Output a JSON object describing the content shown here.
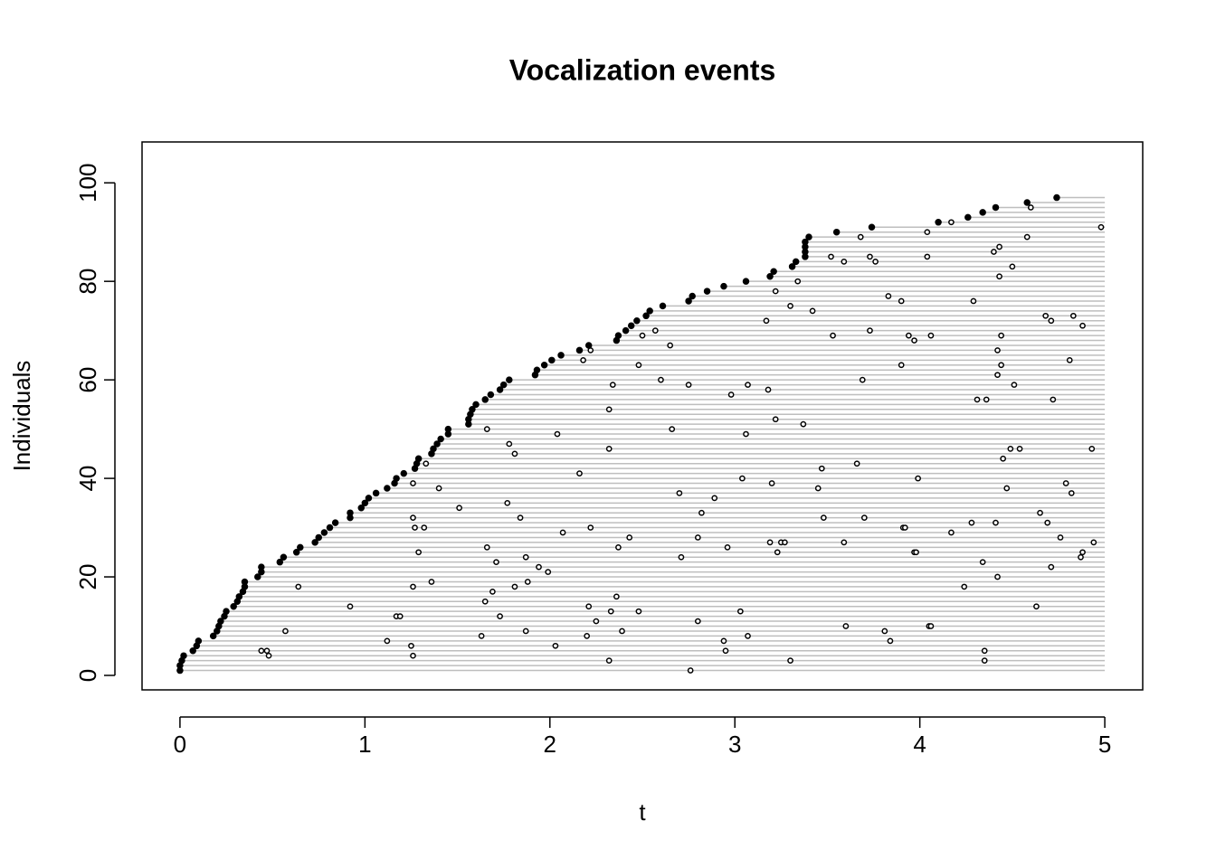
{
  "chart_data": {
    "type": "scatter",
    "title": "Vocalization events",
    "xlabel": "t",
    "ylabel": "Individuals",
    "xlim": [
      -0.205,
      5.205
    ],
    "ylim": [
      -2.94,
      108.3
    ],
    "xticks": [
      0,
      1,
      2,
      3,
      4,
      5
    ],
    "yticks": [
      0,
      20,
      40,
      60,
      80,
      100
    ],
    "line_end": 5,
    "line_color": "#bebebe",
    "color": "#000000",
    "series": [
      {
        "marker": "filled",
        "x": [
          0,
          0,
          0.01,
          0.02,
          0.07,
          0.09,
          0.1,
          0.18,
          0.2,
          0.21,
          0.22,
          0.24,
          0.25,
          0.29,
          0.31,
          0.32,
          0.34,
          0.35,
          0.35,
          0.42,
          0.44,
          0.44,
          0.54,
          0.56,
          0.63,
          0.65,
          0.73,
          0.75,
          0.78,
          0.81,
          0.84,
          0.92,
          0.92,
          0.98,
          1.0,
          1.02,
          1.06,
          1.12,
          1.16,
          1.17,
          1.21,
          1.27,
          1.28,
          1.29,
          1.36,
          1.37,
          1.39,
          1.41,
          1.45,
          1.45,
          1.56,
          1.56,
          1.57,
          1.58,
          1.6,
          1.65,
          1.68,
          1.73,
          1.75,
          1.78,
          1.92,
          1.93,
          1.97,
          2.01,
          2.06,
          2.16,
          2.21,
          2.36,
          2.37,
          2.41,
          2.44,
          2.47,
          2.52,
          2.54,
          2.61,
          2.75,
          2.77,
          2.85,
          2.94,
          3.06,
          3.19,
          3.21,
          3.31,
          3.33,
          3.38,
          3.38,
          3.38,
          3.38,
          3.4,
          3.55,
          3.74,
          4.1,
          4.26,
          4.34,
          4.41,
          4.58,
          4.74
        ],
        "y": [
          1,
          2,
          3,
          4,
          5,
          6,
          7,
          8,
          9,
          10,
          11,
          12,
          13,
          14,
          15,
          16,
          17,
          18,
          19,
          20,
          21,
          22,
          23,
          24,
          25,
          26,
          27,
          28,
          29,
          30,
          31,
          32,
          33,
          34,
          35,
          36,
          37,
          38,
          39,
          40,
          41,
          42,
          43,
          44,
          45,
          46,
          47,
          48,
          49,
          50,
          51,
          52,
          53,
          54,
          55,
          56,
          57,
          58,
          59,
          60,
          61,
          62,
          63,
          64,
          65,
          66,
          67,
          68,
          69,
          70,
          71,
          72,
          73,
          74,
          75,
          76,
          77,
          78,
          79,
          80,
          81,
          82,
          83,
          84,
          85,
          86,
          87,
          88,
          89,
          90,
          91,
          92,
          93,
          94,
          95,
          96,
          97
        ]
      },
      {
        "marker": "open",
        "x": [
          0.44,
          0.47,
          0.48,
          0.57,
          0.64,
          0.92,
          1.12,
          1.17,
          1.19,
          1.25,
          1.26,
          1.26,
          1.26,
          1.26,
          1.27,
          1.29,
          1.32,
          1.33,
          1.36,
          1.4,
          1.51,
          1.63,
          1.65,
          1.66,
          1.66,
          1.69,
          1.71,
          1.73,
          1.77,
          1.78,
          1.81,
          1.81,
          1.84,
          1.87,
          1.87,
          1.88,
          1.94,
          1.99,
          2.03,
          2.04,
          2.07,
          2.16,
          2.18,
          2.2,
          2.21,
          2.22,
          2.22,
          2.25,
          2.32,
          2.32,
          2.32,
          2.33,
          2.34,
          2.36,
          2.37,
          2.39,
          2.43,
          2.48,
          2.48,
          2.5,
          2.57,
          2.6,
          2.65,
          2.66,
          2.7,
          2.71,
          2.75,
          2.76,
          2.8,
          2.8,
          2.82,
          2.89,
          2.94,
          2.95,
          2.96,
          2.98,
          3.03,
          3.04,
          3.06,
          3.07,
          3.07,
          3.17,
          3.18,
          3.19,
          3.2,
          3.22,
          3.22,
          3.23,
          3.25,
          3.27,
          3.3,
          3.3,
          3.34,
          3.37,
          3.42,
          3.45,
          3.47,
          3.48,
          3.52,
          3.53,
          3.59,
          3.59,
          3.6,
          3.66,
          3.68,
          3.69,
          3.7,
          3.73,
          3.73,
          3.76,
          3.81,
          3.83,
          3.84,
          3.9,
          3.9,
          3.91,
          3.92,
          3.94,
          3.97,
          3.97,
          3.98,
          3.99,
          4.04,
          4.04,
          4.05,
          4.06,
          4.06,
          4.17,
          4.17,
          4.24,
          4.28,
          4.29,
          4.31,
          4.34,
          4.35,
          4.35,
          4.36,
          4.4,
          4.41,
          4.42,
          4.42,
          4.42,
          4.43,
          4.43,
          4.44,
          4.44,
          4.45,
          4.47,
          4.49,
          4.5,
          4.51,
          4.54,
          4.58,
          4.6,
          4.63,
          4.65,
          4.68,
          4.69,
          4.71,
          4.71,
          4.72,
          4.76,
          4.79,
          4.81,
          4.82,
          4.83,
          4.87,
          4.88,
          4.88,
          4.93,
          4.94,
          4.98
        ],
        "y": [
          5,
          5,
          4,
          9,
          18,
          14,
          7,
          12,
          12,
          6,
          4,
          18,
          39,
          32,
          30,
          25,
          30,
          43,
          19,
          38,
          34,
          8,
          15,
          26,
          50,
          17,
          23,
          12,
          35,
          47,
          45,
          18,
          32,
          9,
          24,
          19,
          22,
          21,
          6,
          49,
          29,
          41,
          64,
          8,
          14,
          30,
          66,
          11,
          3,
          46,
          54,
          13,
          59,
          16,
          26,
          9,
          28,
          13,
          63,
          69,
          70,
          60,
          67,
          50,
          37,
          24,
          59,
          1,
          11,
          28,
          33,
          36,
          7,
          5,
          26,
          57,
          13,
          40,
          49,
          8,
          59,
          72,
          58,
          27,
          39,
          52,
          78,
          25,
          27,
          27,
          3,
          75,
          80,
          51,
          74,
          38,
          42,
          32,
          85,
          69,
          27,
          84,
          10,
          43,
          89,
          60,
          32,
          70,
          85,
          84,
          9,
          77,
          7,
          63,
          76,
          30,
          30,
          69,
          68,
          25,
          25,
          40,
          85,
          90,
          10,
          10,
          69,
          29,
          92,
          18,
          31,
          76,
          56,
          23,
          3,
          5,
          56,
          86,
          31,
          20,
          61,
          66,
          81,
          87,
          63,
          69,
          44,
          38,
          46,
          83,
          59,
          46,
          89,
          95,
          14,
          33,
          73,
          31,
          22,
          72,
          56,
          28,
          39,
          64,
          37,
          73,
          24,
          25,
          71,
          46,
          27,
          91
        ]
      }
    ]
  }
}
